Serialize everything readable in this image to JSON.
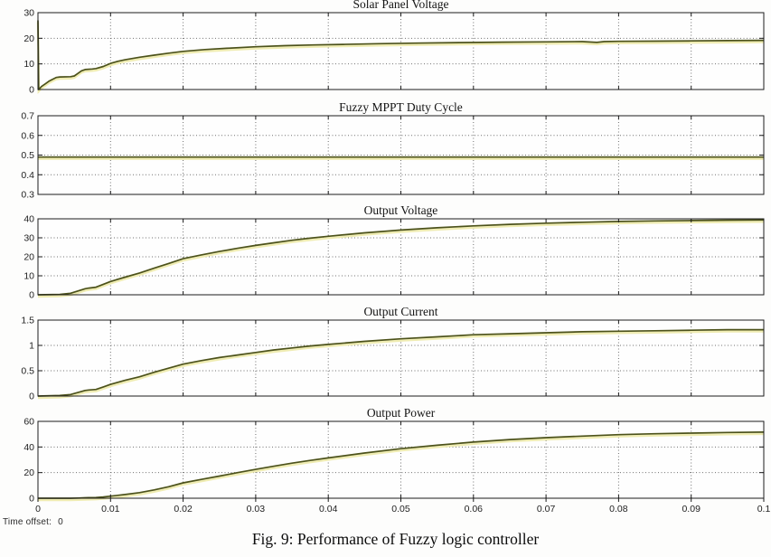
{
  "figure": {
    "caption": "Fig. 9: Performance of Fuzzy logic controller",
    "time_offset_label": "Time offset:",
    "time_offset_value": "0"
  },
  "style": {
    "trace_color": "#4c521b",
    "trace_halo_color": "#efecb2",
    "grid_color": "#707070",
    "frame_color": "#1c1c1c",
    "plot_background": "#fefefe",
    "tick_label_color": "#222222"
  },
  "x_axis": {
    "min": 0,
    "max": 0.1,
    "tick_values": [
      0,
      0.01,
      0.02,
      0.03,
      0.04,
      0.05,
      0.06,
      0.07,
      0.08,
      0.09,
      0.1
    ],
    "tick_labels": [
      "0",
      "0.01",
      "0.02",
      "0.03",
      "0.04",
      "0.05",
      "0.06",
      "0.07",
      "0.08",
      "0.09",
      "0.1"
    ]
  },
  "chart_data": [
    {
      "type": "line",
      "title": "Solar Panel Voltage",
      "ylim": [
        0,
        30
      ],
      "ytick_values": [
        0,
        10,
        20,
        30
      ],
      "ytick_labels": [
        "0",
        "10",
        "20",
        "30"
      ],
      "grid_y": [
        10,
        20
      ],
      "x": [
        0,
        0.0001,
        0.0005,
        0.001,
        0.0015,
        0.002,
        0.0025,
        0.003,
        0.0045,
        0.005,
        0.0055,
        0.006,
        0.0065,
        0.0075,
        0.008,
        0.009,
        0.01,
        0.011,
        0.012,
        0.014,
        0.016,
        0.018,
        0.02,
        0.023,
        0.026,
        0.03,
        0.034,
        0.038,
        0.042,
        0.047,
        0.052,
        0.058,
        0.064,
        0.07,
        0.075,
        0.077,
        0.078,
        0.08,
        0.085,
        0.09,
        0.095,
        0.1
      ],
      "y": [
        27,
        0,
        1.2,
        2.2,
        3.2,
        4,
        4.7,
        4.9,
        5,
        5.3,
        6.3,
        7.3,
        7.8,
        8,
        8.2,
        9,
        10.2,
        11,
        11.6,
        12.6,
        13.4,
        14.2,
        14.9,
        15.6,
        16.1,
        16.7,
        17.1,
        17.4,
        17.6,
        17.9,
        18.1,
        18.3,
        18.5,
        18.6,
        18.7,
        18.4,
        18.7,
        18.8,
        18.9,
        19,
        19.1,
        19.2
      ]
    },
    {
      "type": "line",
      "title": "Fuzzy MPPT Duty Cycle",
      "ylim": [
        0.3,
        0.7
      ],
      "ytick_values": [
        0.3,
        0.4,
        0.5,
        0.6,
        0.7
      ],
      "ytick_labels": [
        "0.3",
        "0.4",
        "0.5",
        "0.6",
        "0.7"
      ],
      "grid_y": [
        0.4,
        0.5,
        0.6
      ],
      "x": [
        0,
        0.1
      ],
      "y": [
        0.49,
        0.49
      ]
    },
    {
      "type": "line",
      "title": "Output Voltage",
      "ylim": [
        0,
        40
      ],
      "ytick_values": [
        0,
        10,
        20,
        30,
        40
      ],
      "ytick_labels": [
        "0",
        "10",
        "20",
        "30",
        "40"
      ],
      "grid_y": [
        10,
        20,
        30
      ],
      "x": [
        0,
        0.003,
        0.0045,
        0.0055,
        0.0065,
        0.007,
        0.008,
        0.009,
        0.01,
        0.012,
        0.014,
        0.016,
        0.018,
        0.02,
        0.0225,
        0.025,
        0.0275,
        0.03,
        0.0325,
        0.035,
        0.0375,
        0.04,
        0.045,
        0.05,
        0.055,
        0.06,
        0.065,
        0.07,
        0.075,
        0.08,
        0.085,
        0.09,
        0.095,
        0.1
      ],
      "y": [
        0,
        0.2,
        0.8,
        2,
        3.2,
        3.5,
        4,
        5.5,
        7,
        9.3,
        11.5,
        14,
        16.5,
        19,
        21,
        22.8,
        24.5,
        26,
        27.4,
        28.7,
        29.8,
        30.8,
        32.6,
        34.1,
        35.3,
        36.3,
        37.1,
        37.7,
        38.2,
        38.6,
        38.9,
        39.1,
        39.3,
        39.4
      ]
    },
    {
      "type": "line",
      "title": "Output Current",
      "ylim": [
        0,
        1.5
      ],
      "ytick_values": [
        0,
        0.5,
        1,
        1.5
      ],
      "ytick_labels": [
        "0",
        "0.5",
        "1",
        "1.5"
      ],
      "grid_y": [
        0.5,
        1
      ],
      "x": [
        0,
        0.003,
        0.0045,
        0.0055,
        0.0065,
        0.007,
        0.008,
        0.009,
        0.01,
        0.012,
        0.014,
        0.016,
        0.018,
        0.02,
        0.0225,
        0.025,
        0.0275,
        0.03,
        0.0325,
        0.035,
        0.0375,
        0.04,
        0.045,
        0.05,
        0.055,
        0.06,
        0.065,
        0.07,
        0.075,
        0.08,
        0.085,
        0.09,
        0.095,
        0.1
      ],
      "y": [
        0,
        0.01,
        0.03,
        0.07,
        0.11,
        0.12,
        0.13,
        0.18,
        0.23,
        0.31,
        0.38,
        0.47,
        0.55,
        0.63,
        0.7,
        0.76,
        0.81,
        0.86,
        0.91,
        0.95,
        0.99,
        1.02,
        1.08,
        1.13,
        1.17,
        1.21,
        1.23,
        1.25,
        1.27,
        1.28,
        1.29,
        1.3,
        1.31,
        1.31
      ]
    },
    {
      "type": "line",
      "title": "Output Power",
      "ylim": [
        0,
        60
      ],
      "ytick_values": [
        0,
        20,
        40,
        60
      ],
      "ytick_labels": [
        "0",
        "20",
        "40",
        "60"
      ],
      "grid_y": [
        20,
        40
      ],
      "x": [
        0,
        0.003,
        0.0045,
        0.0055,
        0.0065,
        0.007,
        0.008,
        0.009,
        0.01,
        0.012,
        0.014,
        0.016,
        0.018,
        0.02,
        0.0225,
        0.025,
        0.0275,
        0.03,
        0.0325,
        0.035,
        0.0375,
        0.04,
        0.045,
        0.05,
        0.055,
        0.06,
        0.065,
        0.07,
        0.075,
        0.08,
        0.085,
        0.09,
        0.095,
        0.1
      ],
      "y": [
        0,
        0,
        0.02,
        0.13,
        0.34,
        0.41,
        0.53,
        1,
        1.6,
        2.9,
        4.4,
        6.5,
        9,
        12,
        14.7,
        17.3,
        20,
        22.5,
        25,
        27.4,
        29.5,
        31.5,
        35.3,
        38.7,
        41.4,
        43.8,
        45.8,
        47.3,
        48.5,
        49.6,
        50.3,
        50.8,
        51.3,
        51.6
      ]
    }
  ]
}
